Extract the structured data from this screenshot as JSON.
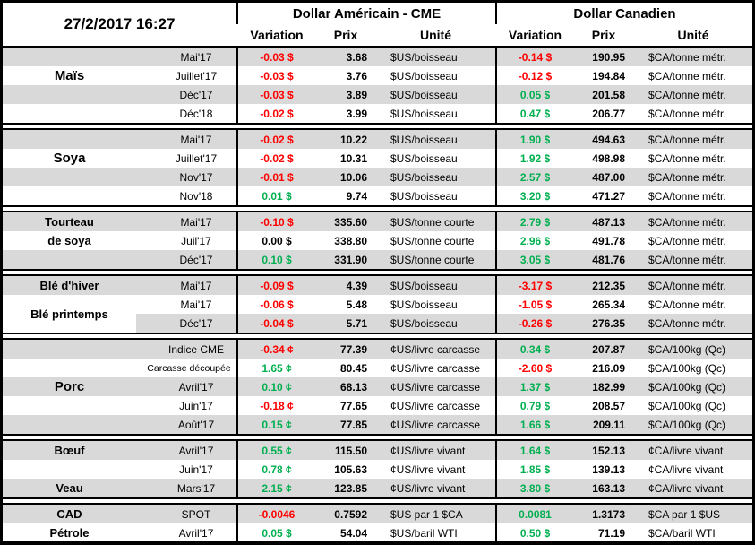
{
  "colors": {
    "negative": "#ff0000",
    "positive": "#00b050",
    "stripe": "#d9d9d9",
    "border": "#000000"
  },
  "header": {
    "timestamp": "27/2/2017 16:27",
    "us_title": "Dollar Américain - CME",
    "ca_title": "Dollar Canadien",
    "col_variation": "Variation",
    "col_prix": "Prix",
    "col_unite": "Unité"
  },
  "groups": [
    {
      "name": "Maïs",
      "rows": [
        {
          "commodity": "",
          "month": "Mai'17",
          "us_var": "-0.03 $",
          "us_prix": "3.68",
          "us_unit": "$US/boisseau",
          "ca_var": "-0.14 $",
          "ca_prix": "190.95",
          "ca_unit": "$CA/tonne métr."
        },
        {
          "commodity": "Maïs",
          "month": "Juillet'17",
          "us_var": "-0.03 $",
          "us_prix": "3.76",
          "us_unit": "$US/boisseau",
          "ca_var": "-0.12 $",
          "ca_prix": "194.84",
          "ca_unit": "$CA/tonne métr."
        },
        {
          "commodity": "",
          "month": "Déc'17",
          "us_var": "-0.03 $",
          "us_prix": "3.89",
          "us_unit": "$US/boisseau",
          "ca_var": "0.05 $",
          "ca_prix": "201.58",
          "ca_unit": "$CA/tonne métr."
        },
        {
          "commodity": "",
          "month": "Déc'18",
          "us_var": "-0.02 $",
          "us_prix": "3.99",
          "us_unit": "$US/boisseau",
          "ca_var": "0.47 $",
          "ca_prix": "206.77",
          "ca_unit": "$CA/tonne métr."
        }
      ]
    },
    {
      "name": "Soya",
      "rows": [
        {
          "commodity": "",
          "month": "Mai'17",
          "us_var": "-0.02 $",
          "us_prix": "10.22",
          "us_unit": "$US/boisseau",
          "ca_var": "1.90 $",
          "ca_prix": "494.63",
          "ca_unit": "$CA/tonne métr."
        },
        {
          "commodity": "Soya",
          "month": "Juillet'17",
          "us_var": "-0.02 $",
          "us_prix": "10.31",
          "us_unit": "$US/boisseau",
          "ca_var": "1.92 $",
          "ca_prix": "498.98",
          "ca_unit": "$CA/tonne métr."
        },
        {
          "commodity": "",
          "month": "Nov'17",
          "us_var": "-0.01 $",
          "us_prix": "10.06",
          "us_unit": "$US/boisseau",
          "ca_var": "2.57 $",
          "ca_prix": "487.00",
          "ca_unit": "$CA/tonne métr."
        },
        {
          "commodity": "",
          "month": "Nov'18",
          "us_var": "0.01 $",
          "us_prix": "9.74",
          "us_unit": "$US/boisseau",
          "ca_var": "3.20 $",
          "ca_prix": "471.27",
          "ca_unit": "$CA/tonne métr."
        }
      ]
    },
    {
      "name": "Tourteau de soya",
      "rows": [
        {
          "commodity": "Tourteau",
          "month": "Mai'17",
          "us_var": "-0.10 $",
          "us_prix": "335.60",
          "us_unit": "$US/tonne courte",
          "ca_var": "2.79 $",
          "ca_prix": "487.13",
          "ca_unit": "$CA/tonne métr."
        },
        {
          "commodity": "de soya",
          "month": "Juil'17",
          "us_var": "0.00 $",
          "us_prix": "338.80",
          "us_unit": "$US/tonne courte",
          "ca_var": "2.96 $",
          "ca_prix": "491.78",
          "ca_unit": "$CA/tonne métr."
        },
        {
          "commodity": "",
          "month": "Déc'17",
          "us_var": "0.10 $",
          "us_prix": "331.90",
          "us_unit": "$US/tonne courte",
          "ca_var": "3.05 $",
          "ca_prix": "481.76",
          "ca_unit": "$CA/tonne métr."
        }
      ]
    },
    {
      "name": "Blé",
      "rows": [
        {
          "commodity": "Blé d'hiver",
          "month": "Mai'17",
          "us_var": "-0.09 $",
          "us_prix": "4.39",
          "us_unit": "$US/boisseau",
          "ca_var": "-3.17 $",
          "ca_prix": "212.35",
          "ca_unit": "$CA/tonne métr."
        },
        {
          "commodity": "Blé printemps",
          "month": "Mai'17",
          "us_var": "-0.06 $",
          "us_prix": "5.48",
          "us_unit": "$US/boisseau",
          "ca_var": "-1.05 $",
          "ca_prix": "265.34",
          "ca_unit": "$CA/tonne métr."
        },
        {
          "commodity": "",
          "month": "Déc'17",
          "us_var": "-0.04 $",
          "us_prix": "5.71",
          "us_unit": "$US/boisseau",
          "ca_var": "-0.26 $",
          "ca_prix": "276.35",
          "ca_unit": "$CA/tonne métr."
        }
      ]
    },
    {
      "name": "Porc",
      "rows": [
        {
          "commodity": "",
          "month": "Indice CME",
          "us_var": "-0.34 ¢",
          "us_prix": "77.39",
          "us_unit": "¢US/livre carcasse",
          "ca_var": "0.34 $",
          "ca_prix": "207.87",
          "ca_unit": "$CA/100kg (Qc)"
        },
        {
          "commodity": "",
          "month": "Carcasse découpée",
          "us_var": "1.65 ¢",
          "us_prix": "80.45",
          "us_unit": "¢US/livre carcasse",
          "ca_var": "-2.60 $",
          "ca_prix": "216.09",
          "ca_unit": "$CA/100kg (Qc)"
        },
        {
          "commodity": "Porc",
          "month": "Avril'17",
          "us_var": "0.10 ¢",
          "us_prix": "68.13",
          "us_unit": "¢US/livre carcasse",
          "ca_var": "1.37 $",
          "ca_prix": "182.99",
          "ca_unit": "$CA/100kg (Qc)"
        },
        {
          "commodity": "",
          "month": "Juin'17",
          "us_var": "-0.18 ¢",
          "us_prix": "77.65",
          "us_unit": "¢US/livre carcasse",
          "ca_var": "0.79 $",
          "ca_prix": "208.57",
          "ca_unit": "$CA/100kg (Qc)"
        },
        {
          "commodity": "",
          "month": "Août'17",
          "us_var": "0.15 ¢",
          "us_prix": "77.85",
          "us_unit": "¢US/livre carcasse",
          "ca_var": "1.66 $",
          "ca_prix": "209.11",
          "ca_unit": "$CA/100kg (Qc)"
        }
      ]
    },
    {
      "name": "Bœuf / Veau",
      "rows": [
        {
          "commodity": "Bœuf",
          "month": "Avril'17",
          "us_var": "0.55 ¢",
          "us_prix": "115.50",
          "us_unit": "¢US/livre vivant",
          "ca_var": "1.64 $",
          "ca_prix": "152.13",
          "ca_unit": "¢CA/livre vivant"
        },
        {
          "commodity": "",
          "month": "Juin'17",
          "us_var": "0.78 ¢",
          "us_prix": "105.63",
          "us_unit": "¢US/livre vivant",
          "ca_var": "1.85 $",
          "ca_prix": "139.13",
          "ca_unit": "¢CA/livre vivant"
        },
        {
          "commodity": "Veau",
          "month": "Mars'17",
          "us_var": "2.15 ¢",
          "us_prix": "123.85",
          "us_unit": "¢US/livre vivant",
          "ca_var": "3.80 $",
          "ca_prix": "163.13",
          "ca_unit": "¢CA/livre vivant"
        }
      ]
    },
    {
      "name": "CAD / Pétrole",
      "rows": [
        {
          "commodity": "CAD",
          "month": "SPOT",
          "us_var": "-0.0046",
          "us_prix": "0.7592",
          "us_unit": "$US par 1 $CA",
          "ca_var": "0.0081",
          "ca_prix": "1.3173",
          "ca_unit": "$CA par 1 $US"
        },
        {
          "commodity": "Pétrole",
          "month": "Avril'17",
          "us_var": "0.05 $",
          "us_prix": "54.04",
          "us_unit": "$US/baril WTI",
          "ca_var": "0.50 $",
          "ca_prix": "71.19",
          "ca_unit": "$CA/baril WTI"
        }
      ]
    }
  ]
}
